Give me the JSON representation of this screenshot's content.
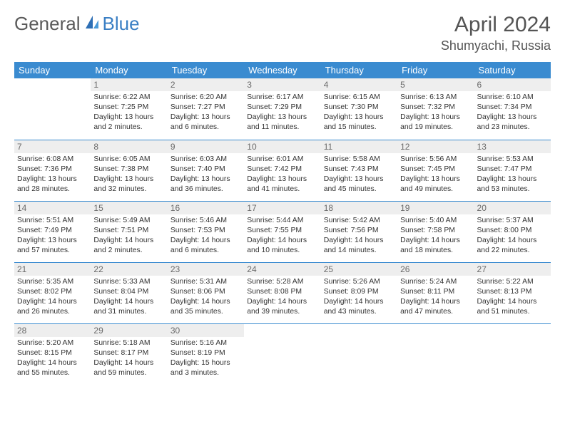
{
  "brand": {
    "part1": "General",
    "part2": "Blue"
  },
  "title": "April 2024",
  "location": "Shumyachi, Russia",
  "colors": {
    "header_bg": "#3a8bd0",
    "header_text": "#ffffff",
    "daynum_bg": "#eeeeee",
    "daynum_text": "#6a6a6a",
    "border": "#3a8bd0",
    "body_text": "#333333",
    "brand_gray": "#5a5a5a",
    "brand_blue": "#3a7fc4"
  },
  "weekdays": [
    "Sunday",
    "Monday",
    "Tuesday",
    "Wednesday",
    "Thursday",
    "Friday",
    "Saturday"
  ],
  "weeks": [
    [
      null,
      {
        "n": "1",
        "sr": "Sunrise: 6:22 AM",
        "ss": "Sunset: 7:25 PM",
        "d1": "Daylight: 13 hours",
        "d2": "and 2 minutes."
      },
      {
        "n": "2",
        "sr": "Sunrise: 6:20 AM",
        "ss": "Sunset: 7:27 PM",
        "d1": "Daylight: 13 hours",
        "d2": "and 6 minutes."
      },
      {
        "n": "3",
        "sr": "Sunrise: 6:17 AM",
        "ss": "Sunset: 7:29 PM",
        "d1": "Daylight: 13 hours",
        "d2": "and 11 minutes."
      },
      {
        "n": "4",
        "sr": "Sunrise: 6:15 AM",
        "ss": "Sunset: 7:30 PM",
        "d1": "Daylight: 13 hours",
        "d2": "and 15 minutes."
      },
      {
        "n": "5",
        "sr": "Sunrise: 6:13 AM",
        "ss": "Sunset: 7:32 PM",
        "d1": "Daylight: 13 hours",
        "d2": "and 19 minutes."
      },
      {
        "n": "6",
        "sr": "Sunrise: 6:10 AM",
        "ss": "Sunset: 7:34 PM",
        "d1": "Daylight: 13 hours",
        "d2": "and 23 minutes."
      }
    ],
    [
      {
        "n": "7",
        "sr": "Sunrise: 6:08 AM",
        "ss": "Sunset: 7:36 PM",
        "d1": "Daylight: 13 hours",
        "d2": "and 28 minutes."
      },
      {
        "n": "8",
        "sr": "Sunrise: 6:05 AM",
        "ss": "Sunset: 7:38 PM",
        "d1": "Daylight: 13 hours",
        "d2": "and 32 minutes."
      },
      {
        "n": "9",
        "sr": "Sunrise: 6:03 AM",
        "ss": "Sunset: 7:40 PM",
        "d1": "Daylight: 13 hours",
        "d2": "and 36 minutes."
      },
      {
        "n": "10",
        "sr": "Sunrise: 6:01 AM",
        "ss": "Sunset: 7:42 PM",
        "d1": "Daylight: 13 hours",
        "d2": "and 41 minutes."
      },
      {
        "n": "11",
        "sr": "Sunrise: 5:58 AM",
        "ss": "Sunset: 7:43 PM",
        "d1": "Daylight: 13 hours",
        "d2": "and 45 minutes."
      },
      {
        "n": "12",
        "sr": "Sunrise: 5:56 AM",
        "ss": "Sunset: 7:45 PM",
        "d1": "Daylight: 13 hours",
        "d2": "and 49 minutes."
      },
      {
        "n": "13",
        "sr": "Sunrise: 5:53 AM",
        "ss": "Sunset: 7:47 PM",
        "d1": "Daylight: 13 hours",
        "d2": "and 53 minutes."
      }
    ],
    [
      {
        "n": "14",
        "sr": "Sunrise: 5:51 AM",
        "ss": "Sunset: 7:49 PM",
        "d1": "Daylight: 13 hours",
        "d2": "and 57 minutes."
      },
      {
        "n": "15",
        "sr": "Sunrise: 5:49 AM",
        "ss": "Sunset: 7:51 PM",
        "d1": "Daylight: 14 hours",
        "d2": "and 2 minutes."
      },
      {
        "n": "16",
        "sr": "Sunrise: 5:46 AM",
        "ss": "Sunset: 7:53 PM",
        "d1": "Daylight: 14 hours",
        "d2": "and 6 minutes."
      },
      {
        "n": "17",
        "sr": "Sunrise: 5:44 AM",
        "ss": "Sunset: 7:55 PM",
        "d1": "Daylight: 14 hours",
        "d2": "and 10 minutes."
      },
      {
        "n": "18",
        "sr": "Sunrise: 5:42 AM",
        "ss": "Sunset: 7:56 PM",
        "d1": "Daylight: 14 hours",
        "d2": "and 14 minutes."
      },
      {
        "n": "19",
        "sr": "Sunrise: 5:40 AM",
        "ss": "Sunset: 7:58 PM",
        "d1": "Daylight: 14 hours",
        "d2": "and 18 minutes."
      },
      {
        "n": "20",
        "sr": "Sunrise: 5:37 AM",
        "ss": "Sunset: 8:00 PM",
        "d1": "Daylight: 14 hours",
        "d2": "and 22 minutes."
      }
    ],
    [
      {
        "n": "21",
        "sr": "Sunrise: 5:35 AM",
        "ss": "Sunset: 8:02 PM",
        "d1": "Daylight: 14 hours",
        "d2": "and 26 minutes."
      },
      {
        "n": "22",
        "sr": "Sunrise: 5:33 AM",
        "ss": "Sunset: 8:04 PM",
        "d1": "Daylight: 14 hours",
        "d2": "and 31 minutes."
      },
      {
        "n": "23",
        "sr": "Sunrise: 5:31 AM",
        "ss": "Sunset: 8:06 PM",
        "d1": "Daylight: 14 hours",
        "d2": "and 35 minutes."
      },
      {
        "n": "24",
        "sr": "Sunrise: 5:28 AM",
        "ss": "Sunset: 8:08 PM",
        "d1": "Daylight: 14 hours",
        "d2": "and 39 minutes."
      },
      {
        "n": "25",
        "sr": "Sunrise: 5:26 AM",
        "ss": "Sunset: 8:09 PM",
        "d1": "Daylight: 14 hours",
        "d2": "and 43 minutes."
      },
      {
        "n": "26",
        "sr": "Sunrise: 5:24 AM",
        "ss": "Sunset: 8:11 PM",
        "d1": "Daylight: 14 hours",
        "d2": "and 47 minutes."
      },
      {
        "n": "27",
        "sr": "Sunrise: 5:22 AM",
        "ss": "Sunset: 8:13 PM",
        "d1": "Daylight: 14 hours",
        "d2": "and 51 minutes."
      }
    ],
    [
      {
        "n": "28",
        "sr": "Sunrise: 5:20 AM",
        "ss": "Sunset: 8:15 PM",
        "d1": "Daylight: 14 hours",
        "d2": "and 55 minutes."
      },
      {
        "n": "29",
        "sr": "Sunrise: 5:18 AM",
        "ss": "Sunset: 8:17 PM",
        "d1": "Daylight: 14 hours",
        "d2": "and 59 minutes."
      },
      {
        "n": "30",
        "sr": "Sunrise: 5:16 AM",
        "ss": "Sunset: 8:19 PM",
        "d1": "Daylight: 15 hours",
        "d2": "and 3 minutes."
      },
      null,
      null,
      null,
      null
    ]
  ]
}
